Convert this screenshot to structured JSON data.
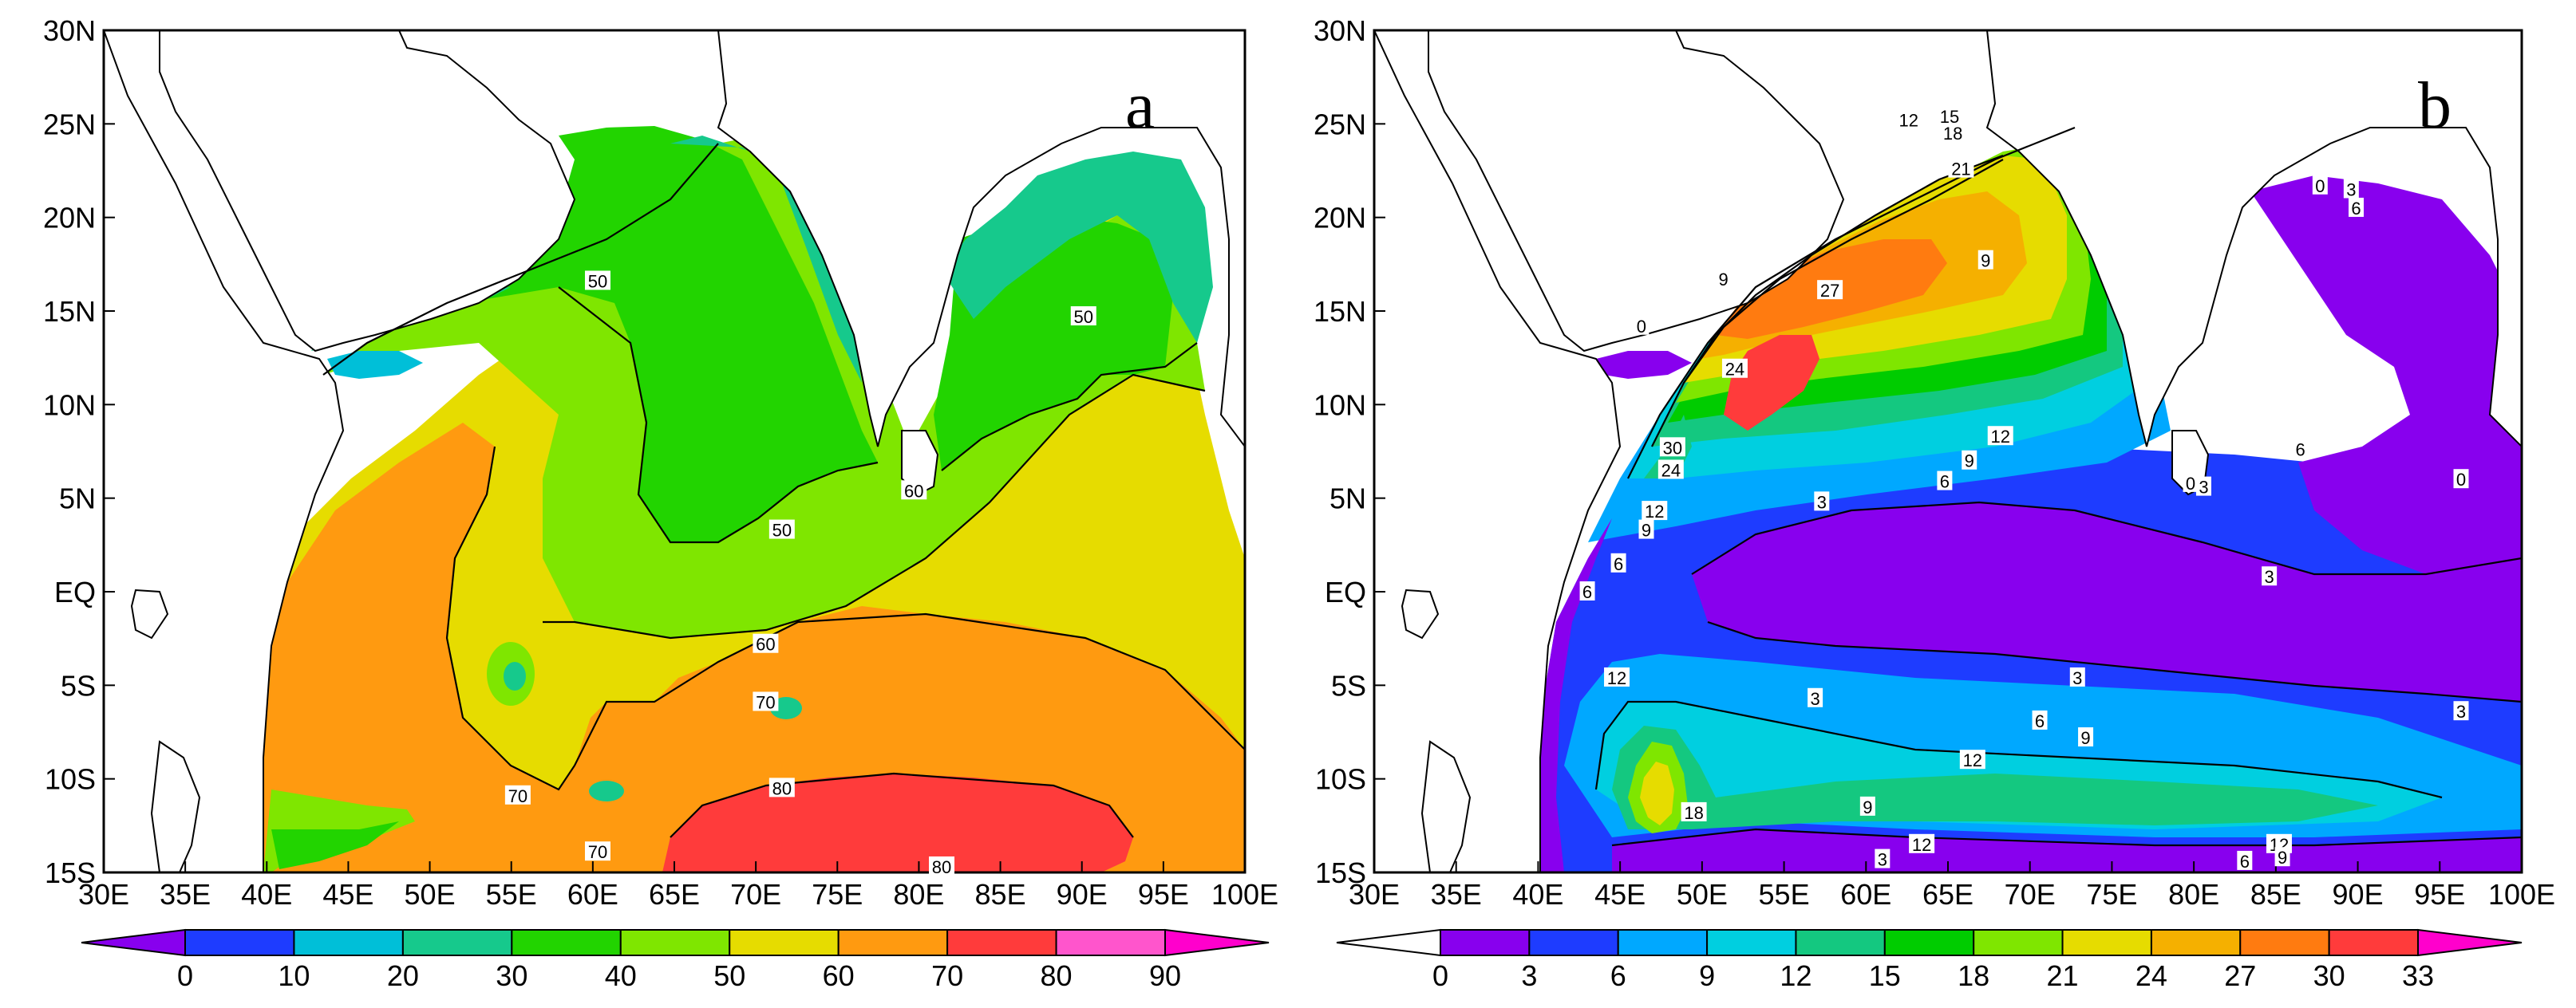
{
  "chart_data": [
    {
      "type": "heatmap",
      "panel_label": "a",
      "title": "",
      "xlabel": "",
      "ylabel": "",
      "xlim": [
        30,
        100
      ],
      "ylim": [
        -15,
        30
      ],
      "x_ticks": [
        "30E",
        "35E",
        "40E",
        "45E",
        "50E",
        "55E",
        "60E",
        "65E",
        "70E",
        "75E",
        "80E",
        "85E",
        "90E",
        "95E",
        "100E"
      ],
      "y_ticks": [
        "30N",
        "25N",
        "20N",
        "15N",
        "10N",
        "5N",
        "EQ",
        "5S",
        "10S",
        "15S"
      ],
      "colorbar": {
        "levels": [
          0,
          10,
          20,
          30,
          40,
          50,
          60,
          70,
          80,
          90
        ],
        "labels": [
          "0",
          "10",
          "20",
          "30",
          "40",
          "50",
          "60",
          "70",
          "80",
          "90"
        ],
        "colors": [
          "#8800ee",
          "#1e3cff",
          "#00bfd8",
          "#16c98c",
          "#22d400",
          "#7fe600",
          "#e6dc00",
          "#ff9a10",
          "#ff3b3b",
          "#ff55cc",
          "#ff00cc"
        ]
      },
      "contour_labels": [
        {
          "text": "50",
          "lon": 60.3,
          "lat": 16.6
        },
        {
          "text": "50",
          "lon": 90.1,
          "lat": 14.7
        },
        {
          "text": "60",
          "lon": 79.7,
          "lat": 5.4
        },
        {
          "text": "50",
          "lon": 71.6,
          "lat": 3.3
        },
        {
          "text": "60",
          "lon": 70.6,
          "lat": -2.8
        },
        {
          "text": "70",
          "lon": 70.6,
          "lat": -5.9
        },
        {
          "text": "70",
          "lon": 55.4,
          "lat": -10.9
        },
        {
          "text": "80",
          "lon": 71.6,
          "lat": -10.5
        },
        {
          "text": "70",
          "lon": 60.3,
          "lat": -13.9
        },
        {
          "text": "80",
          "lon": 81.4,
          "lat": -14.7
        }
      ],
      "regions": [
        {
          "level": "80-90",
          "lon": [
            70,
            95
          ],
          "lat": [
            -15,
            -9
          ]
        },
        {
          "level": "70-80",
          "lon": [
            55,
            100
          ],
          "lat": [
            -15,
            -1.5
          ]
        },
        {
          "level": "40-50",
          "lon": [
            57,
            95
          ],
          "lat": [
            2,
            25
          ]
        }
      ]
    },
    {
      "type": "heatmap",
      "panel_label": "b",
      "title": "",
      "xlabel": "",
      "ylabel": "",
      "xlim": [
        30,
        100
      ],
      "ylim": [
        -15,
        30
      ],
      "x_ticks": [
        "30E",
        "35E",
        "40E",
        "45E",
        "50E",
        "55E",
        "60E",
        "65E",
        "70E",
        "75E",
        "80E",
        "85E",
        "90E",
        "95E",
        "100E"
      ],
      "y_ticks": [
        "30N",
        "25N",
        "20N",
        "15N",
        "10N",
        "5N",
        "EQ",
        "5S",
        "10S",
        "15S"
      ],
      "colorbar": {
        "levels": [
          0,
          3,
          6,
          9,
          12,
          15,
          18,
          21,
          24,
          27,
          30,
          33
        ],
        "labels": [
          "0",
          "3",
          "6",
          "9",
          "12",
          "15",
          "18",
          "21",
          "24",
          "27",
          "30",
          "33"
        ],
        "colors": [
          "#ffffff",
          "#8800ee",
          "#1e3cff",
          "#00a8ff",
          "#00cfe0",
          "#14c880",
          "#00cc00",
          "#7fe600",
          "#e6dc00",
          "#f5b000",
          "#ff7b10",
          "#ff3b3b",
          "#ff00cc"
        ]
      },
      "contour_labels": [
        {
          "text": "12",
          "lon": 62.6,
          "lat": 25.2
        },
        {
          "text": "15",
          "lon": 65.1,
          "lat": 25.4
        },
        {
          "text": "18",
          "lon": 65.3,
          "lat": 24.5
        },
        {
          "text": "21",
          "lon": 65.8,
          "lat": 22.6
        },
        {
          "text": "0",
          "lon": 87.7,
          "lat": 21.7
        },
        {
          "text": "3",
          "lon": 89.6,
          "lat": 21.5
        },
        {
          "text": "6",
          "lon": 89.9,
          "lat": 20.5
        },
        {
          "text": "9",
          "lon": 67.3,
          "lat": 17.7
        },
        {
          "text": "9",
          "lon": 51.3,
          "lat": 16.7
        },
        {
          "text": "27",
          "lon": 57.8,
          "lat": 16.1
        },
        {
          "text": "0",
          "lon": 46.3,
          "lat": 14.2
        },
        {
          "text": "24",
          "lon": 52.0,
          "lat": 11.9
        },
        {
          "text": "30",
          "lon": 48.2,
          "lat": 7.7
        },
        {
          "text": "12",
          "lon": 68.2,
          "lat": 8.3
        },
        {
          "text": "9",
          "lon": 66.3,
          "lat": 7.0
        },
        {
          "text": "6",
          "lon": 86.5,
          "lat": 7.6
        },
        {
          "text": "24",
          "lon": 48.1,
          "lat": 6.5
        },
        {
          "text": "6",
          "lon": 64.8,
          "lat": 5.9
        },
        {
          "text": "0",
          "lon": 79.8,
          "lat": 5.8
        },
        {
          "text": "3",
          "lon": 80.6,
          "lat": 5.6
        },
        {
          "text": "0",
          "lon": 96.3,
          "lat": 6.0
        },
        {
          "text": "3",
          "lon": 57.3,
          "lat": 4.8
        },
        {
          "text": "12",
          "lon": 47.1,
          "lat": 4.3
        },
        {
          "text": "9",
          "lon": 46.6,
          "lat": 3.3
        },
        {
          "text": "6",
          "lon": 44.9,
          "lat": 1.5
        },
        {
          "text": "3",
          "lon": 84.6,
          "lat": 0.8
        },
        {
          "text": "6",
          "lon": 43.0,
          "lat": 0.0
        },
        {
          "text": "12",
          "lon": 44.8,
          "lat": -4.6
        },
        {
          "text": "3",
          "lon": 72.9,
          "lat": -4.6
        },
        {
          "text": "3",
          "lon": 56.9,
          "lat": -5.7
        },
        {
          "text": "3",
          "lon": 96.3,
          "lat": -6.4
        },
        {
          "text": "6",
          "lon": 70.6,
          "lat": -6.9
        },
        {
          "text": "9",
          "lon": 73.4,
          "lat": -7.8
        },
        {
          "text": "12",
          "lon": 66.5,
          "lat": -9.0
        },
        {
          "text": "9",
          "lon": 60.1,
          "lat": -11.5
        },
        {
          "text": "18",
          "lon": 49.5,
          "lat": -11.8
        },
        {
          "text": "12",
          "lon": 63.4,
          "lat": -13.5
        },
        {
          "text": "12",
          "lon": 85.2,
          "lat": -13.5
        },
        {
          "text": "9",
          "lon": 85.4,
          "lat": -14.2
        },
        {
          "text": "3",
          "lon": 61.0,
          "lat": -14.3
        },
        {
          "text": "6",
          "lon": 83.1,
          "lat": -14.4
        }
      ],
      "regions": [
        {
          "level": "30-33",
          "lon": [
            49,
            56
          ],
          "lat": [
            8,
            13
          ]
        },
        {
          "level": "24-27",
          "lon": [
            52,
            70
          ],
          "lat": [
            8,
            22
          ]
        },
        {
          "level": "0-3",
          "lon": [
            40,
            95
          ],
          "lat": [
            -3,
            4
          ]
        }
      ]
    }
  ]
}
